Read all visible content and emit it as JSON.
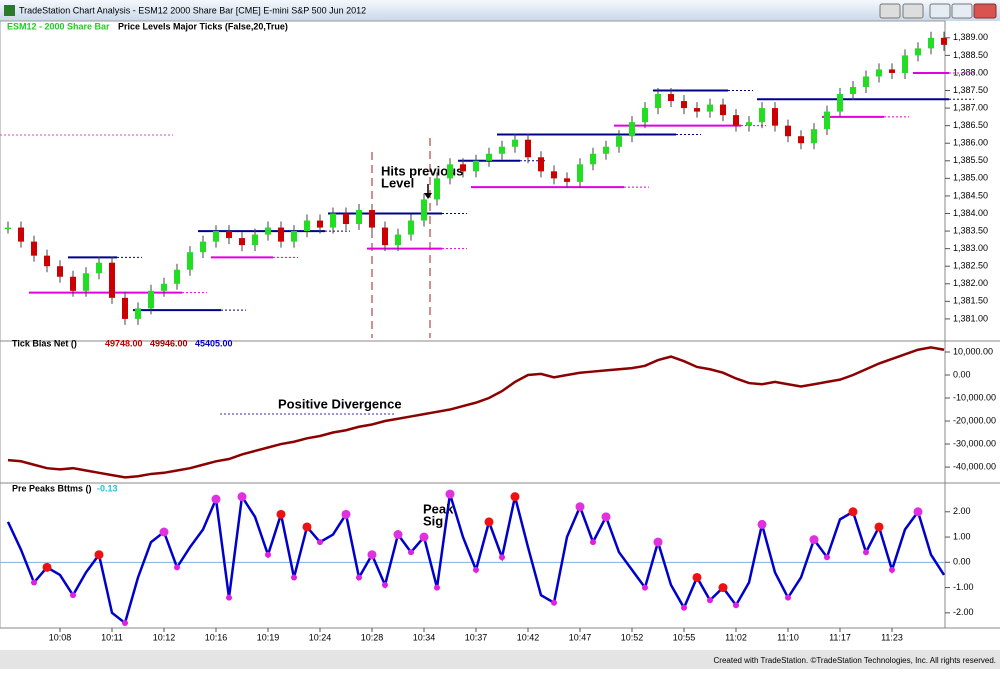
{
  "window": {
    "title": "TradeStation Chart Analysis - ESM12 2000 Share Bar [CME] E-mini S&P 500 Jun 2012"
  },
  "footer": "Created with TradeStation. ©TradeStation Technologies, Inc. All rights reserved.",
  "time_axis": {
    "categories": [
      null,
      null,
      null,
      null,
      "10:08",
      null,
      null,
      null,
      "10:11",
      null,
      null,
      null,
      "10:12",
      null,
      null,
      null,
      "10:16",
      null,
      null,
      null,
      "10:19",
      null,
      null,
      null,
      "10:24",
      null,
      null,
      null,
      "10:28",
      null,
      null,
      null,
      "10:34",
      null,
      null,
      null,
      "10:37",
      null,
      null,
      null,
      "10:42",
      null,
      null,
      null,
      "10:47",
      null,
      null,
      null,
      "10:52",
      null,
      null,
      null,
      "10:55",
      null,
      null,
      null,
      "11:02",
      null,
      null,
      null,
      "11:10",
      null,
      null,
      null,
      "11:17",
      null,
      null,
      null,
      "11:23",
      null,
      null,
      null,
      null
    ]
  },
  "price_panel": {
    "symbol": "ESM12 - 2000 Share Bar",
    "study": "Price  Levels  Major  Ticks (False,20,True)",
    "ylim": [
      1380.4,
      1389.45
    ],
    "yticks": [
      {
        "value": 1381,
        "label": "1,381.00"
      },
      {
        "value": 1381.5,
        "label": "1,381.50"
      },
      {
        "value": 1382,
        "label": "1,382.00"
      },
      {
        "value": 1382.5,
        "label": "1,382.50"
      },
      {
        "value": 1383,
        "label": "1,383.00"
      },
      {
        "value": 1383.5,
        "label": "1,383.50"
      },
      {
        "value": 1384,
        "label": "1,384.00"
      },
      {
        "value": 1384.5,
        "label": "1,384.50"
      },
      {
        "value": 1385,
        "label": "1,385.00"
      },
      {
        "value": 1385.5,
        "label": "1,385.50"
      },
      {
        "value": 1386,
        "label": "1,386.00"
      },
      {
        "value": 1386.5,
        "label": "1,386.50"
      },
      {
        "value": 1387,
        "label": "1,387.00"
      },
      {
        "value": 1387.5,
        "label": "1,387.50"
      },
      {
        "value": 1388,
        "label": "1,388.00"
      },
      {
        "value": 1388.5,
        "label": "1,388.50"
      },
      {
        "value": 1389,
        "label": "1,389.00"
      }
    ],
    "closes": [
      1383.6,
      1383.2,
      1382.8,
      1382.5,
      1382.2,
      1381.8,
      1382.3,
      1382.6,
      1381.6,
      1381.0,
      1381.3,
      1381.8,
      1382.0,
      1382.4,
      1382.9,
      1383.2,
      1383.5,
      1383.3,
      1383.1,
      1383.4,
      1383.6,
      1383.2,
      1383.5,
      1383.8,
      1383.6,
      1384.0,
      1383.7,
      1384.1,
      1383.6,
      1383.1,
      1383.4,
      1383.8,
      1384.4,
      1385.0,
      1385.4,
      1385.2,
      1385.5,
      1385.7,
      1385.9,
      1386.1,
      1385.6,
      1385.2,
      1385.0,
      1384.9,
      1385.4,
      1385.7,
      1385.9,
      1386.2,
      1386.6,
      1387.0,
      1387.4,
      1387.2,
      1387.0,
      1386.9,
      1387.1,
      1386.8,
      1386.5,
      1386.6,
      1387.0,
      1386.5,
      1386.2,
      1386.0,
      1386.4,
      1386.9,
      1387.4,
      1387.6,
      1387.9,
      1388.1,
      1388.0,
      1388.5,
      1388.7,
      1389.0,
      1388.8
    ],
    "up_color": "#22dd22",
    "down_color": "#cc0000",
    "levels": [
      {
        "value": 1382.75,
        "from": 5,
        "to": 8,
        "color": "#00008b"
      },
      {
        "value": 1381.75,
        "from": 2,
        "to": 13,
        "color": "#e000e0"
      },
      {
        "value": 1381.25,
        "from": 10,
        "to": 16,
        "color": "#00008b"
      },
      {
        "value": 1383.5,
        "from": 15,
        "to": 24,
        "color": "#00008b"
      },
      {
        "value": 1382.75,
        "from": 16,
        "to": 20,
        "color": "#e000e0"
      },
      {
        "value": 1384,
        "from": 25,
        "to": 33,
        "color": "#00008b"
      },
      {
        "value": 1383,
        "from": 28,
        "to": 33,
        "color": "#e000e0"
      },
      {
        "value": 1385.5,
        "from": 35,
        "to": 39,
        "color": "#00008b"
      },
      {
        "value": 1384.75,
        "from": 36,
        "to": 47,
        "color": "#e000e0"
      },
      {
        "value": 1386.25,
        "from": 38,
        "to": 51,
        "color": "#00008b"
      },
      {
        "value": 1386.5,
        "from": 47,
        "to": 56,
        "color": "#e000e0"
      },
      {
        "value": 1387.5,
        "from": 50,
        "to": 55,
        "color": "#00008b"
      },
      {
        "value": 1387.25,
        "from": 58,
        "to": 72,
        "color": "#00008b"
      },
      {
        "value": 1386.75,
        "from": 63,
        "to": 67,
        "color": "#e000e0"
      },
      {
        "value": 1388,
        "from": 70,
        "to": 72,
        "color": "#e000e0"
      }
    ],
    "annotation": [
      "Hits previous",
      "Level"
    ]
  },
  "tick_panel": {
    "label": "Tick Bias  Net ()",
    "readouts": [
      {
        "text": "49748.00",
        "color": "#c00000"
      },
      {
        "text": "49946.00",
        "color": "#a00000"
      },
      {
        "text": "45405.00",
        "color": "#0000c0"
      }
    ],
    "ylim": [
      -46500,
      14350
    ],
    "yticks": [
      {
        "value": 10000,
        "label": "10,000.00"
      },
      {
        "value": 0,
        "label": "0.00"
      },
      {
        "value": -10000,
        "label": "-10,000.00"
      },
      {
        "value": -20000,
        "label": "-20,000.00"
      },
      {
        "value": -30000,
        "label": "-30,000.00"
      },
      {
        "value": -40000,
        "label": "-40,000.00"
      }
    ],
    "values": [
      -37000,
      -37500,
      -39000,
      -40500,
      -41000,
      -40500,
      -41500,
      -42500,
      -43500,
      -44500,
      -44000,
      -43000,
      -42500,
      -41500,
      -40500,
      -39000,
      -37500,
      -36500,
      -34500,
      -33000,
      -31500,
      -30000,
      -29000,
      -27500,
      -26500,
      -25000,
      -24000,
      -22500,
      -21500,
      -20000,
      -19000,
      -18000,
      -17000,
      -16000,
      -15000,
      -13500,
      -12000,
      -10000,
      -7000,
      -3000,
      0,
      500,
      -1000,
      0,
      1000,
      1500,
      2000,
      2500,
      3000,
      4000,
      6500,
      8000,
      6000,
      3500,
      2500,
      1000,
      -1500,
      -3500,
      -4000,
      -3000,
      -4000,
      -5000,
      -4000,
      -3000,
      -2000,
      0,
      2500,
      5000,
      7000,
      9000,
      11000,
      12000,
      11000
    ],
    "color": "#8b0000",
    "annotation": "Positive Divergence"
  },
  "peaks_panel": {
    "label": "Pre Peaks  Bttms ()",
    "readout": "-0.13",
    "ylim": [
      -2.6,
      3.1
    ],
    "yticks": [
      {
        "value": 2,
        "label": "2.00"
      },
      {
        "value": 1,
        "label": "1.00"
      },
      {
        "value": 0,
        "label": "0.00"
      },
      {
        "value": -1,
        "label": "-1.00"
      },
      {
        "value": -2,
        "label": "-2.00"
      }
    ],
    "values": [
      1.6,
      0.5,
      -0.8,
      -0.2,
      -0.5,
      -1.3,
      -0.4,
      0.3,
      -2.0,
      -2.4,
      -0.6,
      0.8,
      1.2,
      -0.2,
      0.6,
      1.3,
      2.5,
      -1.4,
      2.6,
      1.8,
      0.3,
      1.9,
      -0.6,
      1.4,
      0.8,
      1.1,
      1.9,
      -0.6,
      0.3,
      -0.9,
      1.1,
      0.4,
      1.0,
      -1.0,
      2.7,
      1.0,
      -0.3,
      1.6,
      0.2,
      2.6,
      0.6,
      -1.3,
      -1.6,
      1.0,
      2.2,
      0.8,
      1.8,
      0.4,
      -0.3,
      -1.0,
      0.8,
      -0.9,
      -1.8,
      -0.6,
      -1.5,
      -1.0,
      -1.7,
      -0.8,
      1.5,
      -0.4,
      -1.4,
      -0.6,
      0.9,
      0.2,
      1.7,
      2.0,
      0.4,
      1.4,
      -0.3,
      1.3,
      2.0,
      0.3,
      -0.5
    ],
    "up_color": "#0000cc",
    "down_color": "#e020e0",
    "annotation": [
      "Peak",
      "Sig"
    ]
  }
}
